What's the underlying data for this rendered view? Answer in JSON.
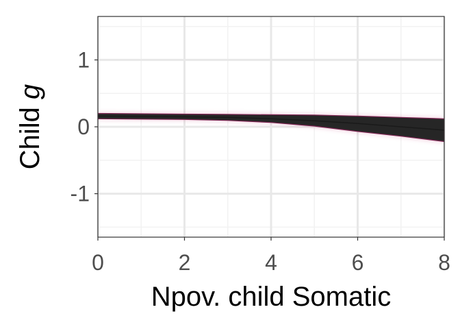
{
  "chart_data": {
    "type": "area",
    "xlabel": "Npov. child Somatic",
    "ylabel": {
      "prefix": "Child ",
      "italic": "g"
    },
    "xlim": [
      0,
      8
    ],
    "ylim": [
      -1.65,
      1.65
    ],
    "x_ticks": [
      0,
      2,
      4,
      6,
      8
    ],
    "x_tick_labels": [
      "0",
      "2",
      "4",
      "6",
      "8"
    ],
    "y_ticks": [
      -1,
      0,
      1
    ],
    "y_tick_labels": [
      "-1",
      "0",
      "1"
    ],
    "grid": true,
    "x": [
      0,
      1,
      2,
      3,
      4,
      5,
      6,
      7,
      8
    ],
    "series": [
      {
        "mean": [
          0.16,
          0.155,
          0.15,
          0.14,
          0.12,
          0.09,
          0.05,
          0.0,
          -0.05
        ],
        "upper": [
          0.2,
          0.195,
          0.19,
          0.185,
          0.18,
          0.175,
          0.16,
          0.14,
          0.12
        ],
        "lower": [
          0.12,
          0.115,
          0.11,
          0.095,
          0.065,
          0.01,
          -0.07,
          -0.14,
          -0.22
        ]
      }
    ],
    "colors": {
      "band": "#262626",
      "band_edge": "#7a2350",
      "glow": "#c8447e",
      "grid_major": "#e8e8e8",
      "grid_minor": "#f2f2f2",
      "border": "#333333"
    }
  }
}
